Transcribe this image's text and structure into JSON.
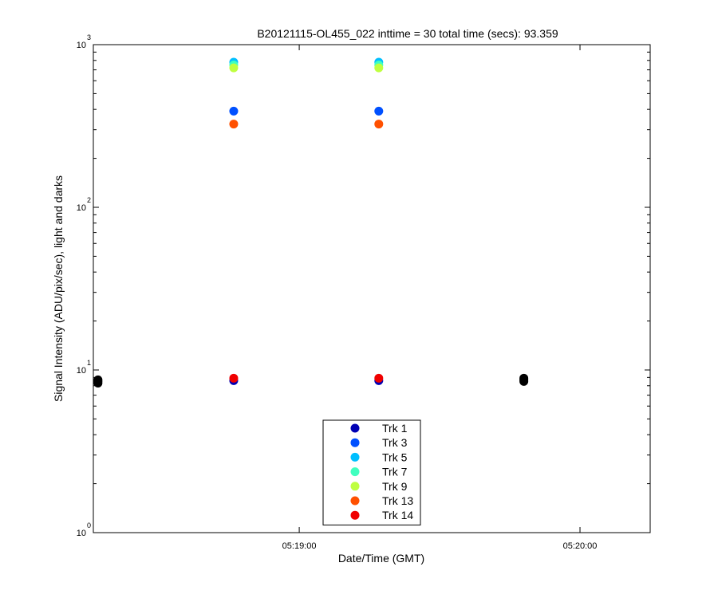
{
  "chart_data": {
    "type": "scatter",
    "title": "B20121115-OL455_022 inttime = 30 total time (secs): 93.359",
    "xlabel": "Date/Time (GMT)",
    "ylabel": "Signal Intensity (ADU/pix/sec), light and darks",
    "yscale": "log",
    "ylim": [
      1,
      1000
    ],
    "y_ticks": [
      {
        "value": 1,
        "base": "10",
        "exp": "0"
      },
      {
        "value": 10,
        "base": "10",
        "exp": "1"
      },
      {
        "value": 100,
        "base": "10",
        "exp": "2"
      },
      {
        "value": 1000,
        "base": "10",
        "exp": "3"
      }
    ],
    "xlim": [
      "05:18:16",
      "05:20:15"
    ],
    "x_ticks": [
      "05:19:00",
      "05:20:00"
    ],
    "grid": false,
    "legend_position": "bottom-center",
    "series": [
      {
        "name": "Trk 1",
        "color": "#0000b4",
        "points": [
          {
            "x": "05:18:46",
            "y": 8.6
          },
          {
            "x": "05:19:17",
            "y": 8.6
          }
        ]
      },
      {
        "name": "Trk 3",
        "color": "#0050ff",
        "points": [
          {
            "x": "05:18:46",
            "y": 390
          },
          {
            "x": "05:19:17",
            "y": 390
          }
        ]
      },
      {
        "name": "Trk 5",
        "color": "#00bfff",
        "points": [
          {
            "x": "05:18:46",
            "y": 780
          },
          {
            "x": "05:19:17",
            "y": 780
          }
        ]
      },
      {
        "name": "Trk 7",
        "color": "#40ffbf",
        "points": [
          {
            "x": "05:18:46",
            "y": 750
          },
          {
            "x": "05:19:17",
            "y": 750
          }
        ]
      },
      {
        "name": "Trk 9",
        "color": "#bfff40",
        "points": [
          {
            "x": "05:18:46",
            "y": 720
          },
          {
            "x": "05:19:17",
            "y": 720
          }
        ]
      },
      {
        "name": "Trk 13",
        "color": "#ff5000",
        "points": [
          {
            "x": "05:18:46",
            "y": 325
          },
          {
            "x": "05:19:17",
            "y": 325
          }
        ]
      },
      {
        "name": "Trk 14",
        "color": "#f00000",
        "points": [
          {
            "x": "05:18:46",
            "y": 8.9
          },
          {
            "x": "05:19:17",
            "y": 8.9
          }
        ]
      }
    ],
    "dark_series": {
      "color": "#000000",
      "points": [
        {
          "x": "05:18:17",
          "y": 8.3
        },
        {
          "x": "05:18:17",
          "y": 8.5
        },
        {
          "x": "05:18:17",
          "y": 8.7
        },
        {
          "x": "05:19:48",
          "y": 8.5
        },
        {
          "x": "05:19:48",
          "y": 8.7
        },
        {
          "x": "05:19:48",
          "y": 8.9
        }
      ]
    }
  }
}
